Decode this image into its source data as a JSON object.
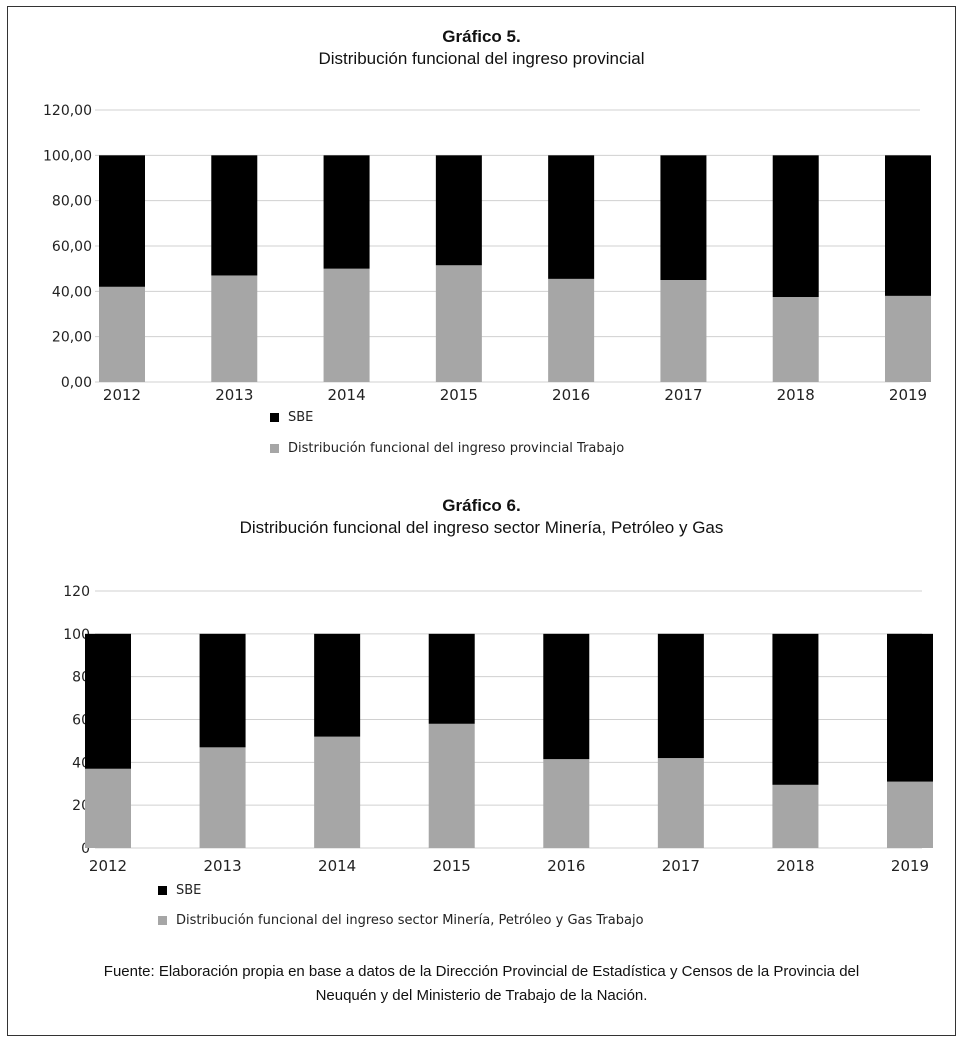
{
  "colors": {
    "sbe": "#000000",
    "trabajo": "#a6a6a6",
    "grid": "#d0d0d0"
  },
  "chart1": {
    "title": "Gráfico 5.",
    "subtitle": "Distribución funcional del ingreso provincial",
    "legend_sbe": "SBE",
    "legend_trabajo": "Distribución funcional del ingreso provincial Trabajo"
  },
  "chart2": {
    "title": "Gráfico  6.",
    "subtitle": "Distribución funcional del ingreso sector Minería,  Petróleo y Gas",
    "legend_sbe": "SBE",
    "legend_trabajo": "Distribución funcional del ingreso sector Minería, Petróleo y Gas Trabajo"
  },
  "source": {
    "line1": "Fuente: Elaboración propia en base a datos de la Dirección Provincial de Estadística y Censos de la Provincia del",
    "line2": "Neuquén y del Ministerio de Trabajo de la Nación."
  },
  "chart_data": [
    {
      "type": "bar",
      "stacked": true,
      "title": "Gráfico 5.",
      "subtitle": "Distribución funcional del ingreso provincial",
      "categories": [
        "2012",
        "2013",
        "2014",
        "2015",
        "2016",
        "2017",
        "2018",
        "2019"
      ],
      "series": [
        {
          "name": "Distribución funcional del ingreso provincial Trabajo",
          "values": [
            42,
            47,
            50,
            51.5,
            45.5,
            45,
            37.5,
            38
          ]
        },
        {
          "name": "SBE",
          "values": [
            58,
            53,
            50,
            48.5,
            54.5,
            55,
            62.5,
            62
          ]
        }
      ],
      "ylim": [
        0,
        120
      ],
      "yticks": [
        "0,00",
        "20,00",
        "40,00",
        "60,00",
        "80,00",
        "100,00",
        "120,00"
      ],
      "grid": true,
      "legend": "bottom"
    },
    {
      "type": "bar",
      "stacked": true,
      "title": "Gráfico  6.",
      "subtitle": "Distribución funcional del ingreso sector Minería,  Petróleo y Gas",
      "categories": [
        "2012",
        "2013",
        "2014",
        "2015",
        "2016",
        "2017",
        "2018",
        "2019"
      ],
      "series": [
        {
          "name": "Distribución funcional del ingreso sector Minería, Petróleo y Gas Trabajo",
          "values": [
            37,
            47,
            52,
            58,
            41.5,
            42,
            29.5,
            31
          ]
        },
        {
          "name": "SBE",
          "values": [
            63,
            53,
            48,
            42,
            58.5,
            58,
            70.5,
            69
          ]
        }
      ],
      "ylim": [
        0,
        120
      ],
      "yticks": [
        "0",
        "20",
        "40",
        "60",
        "80",
        "100",
        "120"
      ],
      "grid": true,
      "legend": "bottom"
    }
  ]
}
